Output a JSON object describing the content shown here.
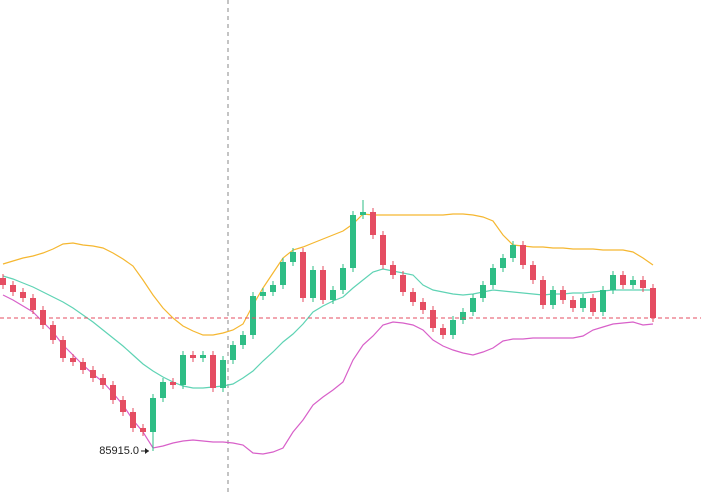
{
  "chart_data": {
    "type": "candlestick",
    "ylim": [
      85505,
      90425
    ],
    "up_color": "#2ebd85",
    "down_color": "#e54d62",
    "open": [
      87645,
      87575,
      87505,
      87445,
      87325,
      87175,
      87025,
      86845,
      86805,
      86725,
      86645,
      86575,
      86425,
      86305,
      86145,
      86105,
      86445,
      86605,
      86575,
      86875,
      86845,
      86875,
      86545,
      86825,
      86975,
      87075,
      87465,
      87505,
      87575,
      87805,
      87905,
      87445,
      87725,
      87425,
      87525,
      87745,
      88275,
      88305,
      88075,
      87775,
      87675,
      87505,
      87405,
      87325,
      87145,
      87075,
      87225,
      87305,
      87445,
      87575,
      87745,
      87845,
      87975,
      87775,
      87625,
      87375,
      87525,
      87425,
      87345,
      87445,
      87305,
      87525,
      87675,
      87575,
      87625,
      87545
    ],
    "high": [
      87685,
      87615,
      87545,
      87485,
      87365,
      87215,
      87065,
      86885,
      86845,
      86765,
      86685,
      86615,
      86465,
      86345,
      86185,
      86485,
      86645,
      86645,
      86915,
      86915,
      86915,
      86915,
      86865,
      87015,
      87115,
      87505,
      87545,
      87615,
      87845,
      87945,
      87945,
      87765,
      87765,
      87565,
      87785,
      88315,
      88425,
      88345,
      88115,
      87815,
      87715,
      87545,
      87445,
      87365,
      87185,
      87265,
      87345,
      87485,
      87615,
      87785,
      87885,
      88015,
      88015,
      87815,
      87665,
      87565,
      87565,
      87465,
      87485,
      87485,
      87565,
      87715,
      87715,
      87665,
      87665,
      87585
    ],
    "low": [
      87535,
      87465,
      87405,
      87285,
      87135,
      86985,
      86805,
      86765,
      86685,
      86605,
      86535,
      86385,
      86265,
      86105,
      86065,
      85915,
      86405,
      86535,
      86535,
      86805,
      86805,
      86505,
      86505,
      86785,
      86935,
      87035,
      87425,
      87465,
      87535,
      87765,
      87405,
      87405,
      87385,
      87385,
      87485,
      87705,
      88235,
      88035,
      87735,
      87635,
      87465,
      87365,
      87285,
      87105,
      87035,
      87035,
      87185,
      87265,
      87405,
      87535,
      87705,
      87805,
      87735,
      87585,
      87335,
      87335,
      87385,
      87305,
      87305,
      87265,
      87265,
      87485,
      87535,
      87535,
      87505,
      87205
    ],
    "close": [
      87575,
      87505,
      87445,
      87325,
      87175,
      87025,
      86845,
      86805,
      86725,
      86645,
      86575,
      86425,
      86305,
      86145,
      86105,
      86445,
      86605,
      86575,
      86875,
      86845,
      86875,
      86545,
      86825,
      86975,
      87075,
      87465,
      87505,
      87575,
      87805,
      87905,
      87445,
      87725,
      87425,
      87525,
      87745,
      88275,
      88305,
      88075,
      87775,
      87675,
      87505,
      87405,
      87325,
      87145,
      87075,
      87225,
      87305,
      87445,
      87575,
      87745,
      87845,
      87975,
      87775,
      87625,
      87375,
      87525,
      87425,
      87345,
      87445,
      87305,
      87525,
      87675,
      87575,
      87625,
      87545,
      87245
    ],
    "bands": [
      {
        "color": "#f5b730",
        "values": [
          87785,
          87815,
          87845,
          87865,
          87895,
          87935,
          87985,
          87995,
          87975,
          87965,
          87945,
          87895,
          87835,
          87765,
          87625,
          87475,
          87345,
          87245,
          87165,
          87115,
          87075,
          87075,
          87095,
          87125,
          87185,
          87375,
          87545,
          87695,
          87845,
          87925,
          87955,
          87995,
          88035,
          88075,
          88115,
          88185,
          88285,
          88275,
          88275,
          88275,
          88275,
          88275,
          88275,
          88275,
          88275,
          88285,
          88285,
          88275,
          88255,
          88215,
          88075,
          87975,
          87965,
          87955,
          87955,
          87945,
          87945,
          87935,
          87935,
          87935,
          87925,
          87925,
          87925,
          87905,
          87845,
          87775
        ]
      },
      {
        "color": "#5fd3b4",
        "values": [
          87665,
          87635,
          87595,
          87555,
          87505,
          87455,
          87405,
          87345,
          87275,
          87205,
          87125,
          87045,
          86965,
          86875,
          86785,
          86715,
          86655,
          86605,
          86565,
          86545,
          86545,
          86555,
          86565,
          86585,
          86645,
          86715,
          86815,
          86905,
          87005,
          87085,
          87185,
          87305,
          87365,
          87415,
          87455,
          87545,
          87625,
          87705,
          87735,
          87715,
          87695,
          87675,
          87575,
          87525,
          87505,
          87485,
          87475,
          87485,
          87505,
          87525,
          87515,
          87505,
          87495,
          87485,
          87475,
          87485,
          87485,
          87495,
          87495,
          87505,
          87515,
          87525,
          87525,
          87525,
          87525,
          87525
        ]
      },
      {
        "color": "#d860c9",
        "values": [
          87475,
          87425,
          87365,
          87305,
          87205,
          87105,
          86975,
          86875,
          86775,
          86685,
          86605,
          86495,
          86375,
          86225,
          86105,
          85945,
          85965,
          85995,
          86015,
          86025,
          86015,
          86005,
          86005,
          85995,
          85975,
          85895,
          85885,
          85905,
          85945,
          86105,
          86225,
          86375,
          86455,
          86525,
          86605,
          86825,
          86975,
          87065,
          87175,
          87205,
          87195,
          87175,
          87125,
          87025,
          86965,
          86925,
          86895,
          86875,
          86905,
          86945,
          87015,
          87035,
          87035,
          87045,
          87045,
          87045,
          87045,
          87045,
          87065,
          87125,
          87155,
          87185,
          87195,
          87205,
          87175,
          87185
        ]
      }
    ],
    "annotation": "85915.0",
    "last_price_color": "#e54d62"
  }
}
